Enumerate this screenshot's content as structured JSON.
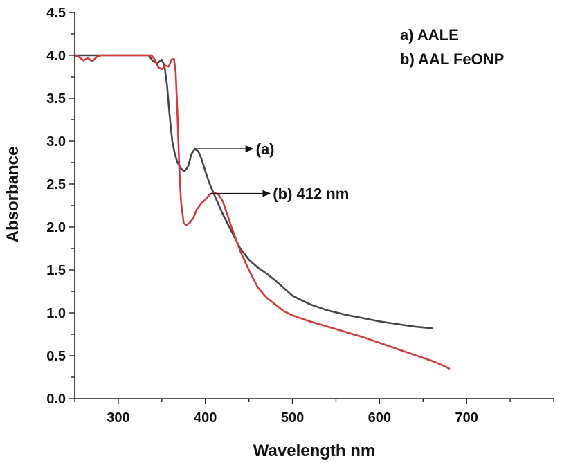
{
  "chart_data": {
    "type": "line",
    "xlabel": "Wavelength nm",
    "ylabel": "Absorbance",
    "xlim": [
      250,
      800
    ],
    "ylim": [
      0,
      4.5
    ],
    "x_ticks": [
      300,
      400,
      500,
      600,
      700
    ],
    "y_ticks": [
      0.0,
      0.5,
      1.0,
      1.5,
      2.0,
      2.5,
      3.0,
      3.5,
      4.0,
      4.5
    ],
    "x_tick_labels": [
      "300",
      "400",
      "500",
      "600",
      "700"
    ],
    "y_tick_labels": [
      "0.0",
      "0.5",
      "1.0",
      "1.5",
      "2.0",
      "2.5",
      "3.0",
      "3.5",
      "4.0",
      "4.5"
    ],
    "grid": false,
    "legend_position": "top-right",
    "legend": [
      "a) AALE",
      "b) AAL FeONP"
    ],
    "series": [
      {
        "name": "a) AALE",
        "color": "#454545",
        "x": [
          250,
          280,
          300,
          320,
          335,
          340,
          345,
          350,
          353,
          356,
          359,
          362,
          365,
          368,
          372,
          376,
          380,
          384,
          388,
          392,
          396,
          400,
          405,
          410,
          420,
          430,
          440,
          450,
          460,
          470,
          480,
          500,
          520,
          540,
          560,
          580,
          600,
          620,
          640,
          650,
          660
        ],
        "y": [
          4.0,
          4.0,
          4.0,
          4.0,
          4.0,
          3.93,
          3.91,
          3.95,
          3.88,
          3.65,
          3.3,
          3.0,
          2.85,
          2.75,
          2.68,
          2.65,
          2.7,
          2.85,
          2.91,
          2.88,
          2.78,
          2.65,
          2.5,
          2.38,
          2.15,
          1.95,
          1.75,
          1.62,
          1.53,
          1.46,
          1.38,
          1.2,
          1.1,
          1.03,
          0.98,
          0.94,
          0.9,
          0.87,
          0.84,
          0.83,
          0.82
        ]
      },
      {
        "name": "b) AAL FeONP",
        "color": "#d33b3a",
        "x": [
          250,
          255,
          260,
          265,
          270,
          275,
          280,
          290,
          300,
          320,
          338,
          342,
          346,
          350,
          354,
          358,
          361,
          364,
          366,
          368,
          370,
          372,
          375,
          378,
          382,
          386,
          390,
          395,
          400,
          405,
          410,
          415,
          420,
          430,
          440,
          450,
          460,
          470,
          480,
          490,
          500,
          520,
          540,
          560,
          580,
          600,
          620,
          640,
          660,
          670,
          680
        ],
        "y": [
          4.0,
          3.98,
          3.94,
          3.97,
          3.93,
          3.98,
          4.0,
          4.0,
          4.0,
          4.0,
          4.0,
          3.95,
          3.86,
          3.84,
          3.88,
          3.87,
          3.95,
          3.96,
          3.8,
          3.3,
          2.7,
          2.3,
          2.05,
          2.02,
          2.05,
          2.1,
          2.2,
          2.27,
          2.32,
          2.38,
          2.4,
          2.38,
          2.3,
          2.0,
          1.72,
          1.5,
          1.3,
          1.18,
          1.1,
          1.02,
          0.97,
          0.9,
          0.84,
          0.78,
          0.72,
          0.65,
          0.58,
          0.51,
          0.44,
          0.4,
          0.35
        ]
      }
    ],
    "annotations": [
      {
        "text": "(a)",
        "x": 388,
        "y": 2.91
      },
      {
        "text": "(b) 412 nm",
        "x": 406,
        "y": 2.39
      }
    ]
  }
}
